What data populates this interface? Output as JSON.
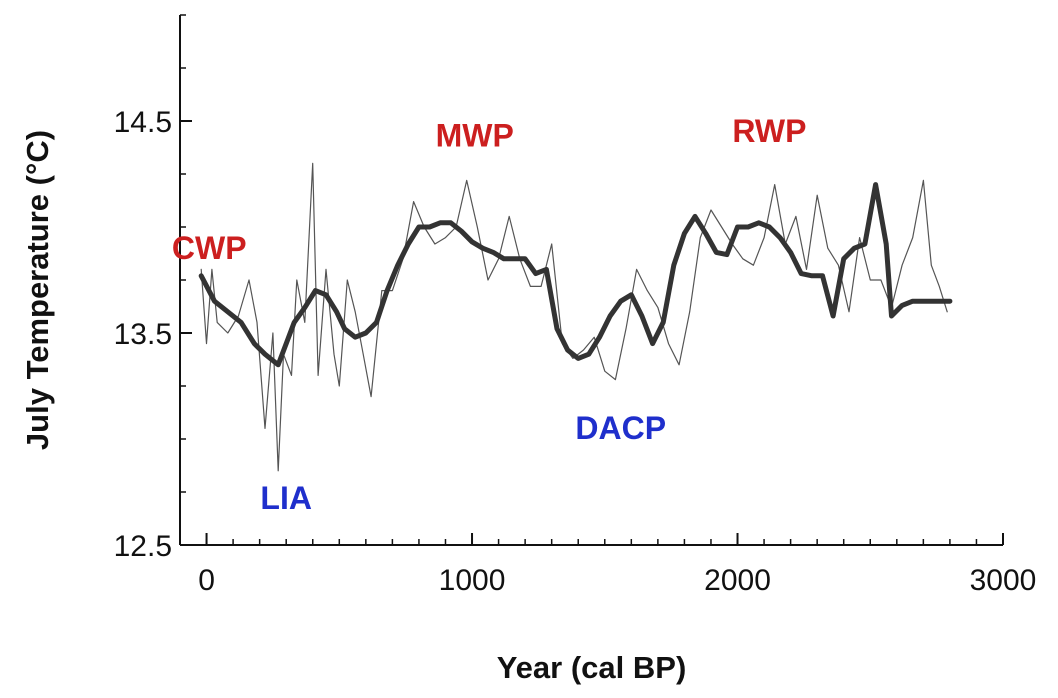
{
  "chart_data": {
    "type": "line",
    "title": "",
    "xlabel": "Year (cal BP)",
    "ylabel": "July Temperature (°C)",
    "xlim": [
      -100,
      3000
    ],
    "ylim": [
      12.5,
      15.0
    ],
    "xticks": [
      0,
      1000,
      2000,
      3000
    ],
    "xtick_labels": [
      "0",
      "1000",
      "2000",
      "3000"
    ],
    "yticks": [
      12.5,
      13.5,
      14.5
    ],
    "ytick_labels": [
      "12.5",
      "13.5",
      "14.5"
    ],
    "x_minor_step": 100,
    "y_minor_step": 0.25,
    "grid": false,
    "legend": "none",
    "series": [
      {
        "style": "thin",
        "color": "#555555",
        "x": [
          -20,
          0,
          20,
          40,
          80,
          120,
          160,
          190,
          220,
          250,
          270,
          290,
          320,
          340,
          370,
          400,
          420,
          450,
          480,
          500,
          530,
          560,
          590,
          620,
          660,
          700,
          740,
          780,
          820,
          860,
          900,
          940,
          980,
          1020,
          1060,
          1100,
          1140,
          1180,
          1220,
          1260,
          1300,
          1340,
          1380,
          1420,
          1460,
          1500,
          1540,
          1580,
          1620,
          1660,
          1700,
          1740,
          1780,
          1820,
          1860,
          1900,
          1940,
          1980,
          2020,
          2060,
          2100,
          2140,
          2180,
          2220,
          2260,
          2300,
          2340,
          2380,
          2420,
          2460,
          2500,
          2540,
          2580,
          2620,
          2660,
          2700,
          2730,
          2760,
          2790
        ],
        "y": [
          13.8,
          13.45,
          13.8,
          13.55,
          13.5,
          13.58,
          13.75,
          13.55,
          13.05,
          13.5,
          12.85,
          13.4,
          13.3,
          13.75,
          13.55,
          14.3,
          13.3,
          13.8,
          13.4,
          13.25,
          13.75,
          13.6,
          13.4,
          13.2,
          13.7,
          13.7,
          13.85,
          14.12,
          14.0,
          13.92,
          13.95,
          14.0,
          14.22,
          14.0,
          13.75,
          13.85,
          14.05,
          13.85,
          13.72,
          13.72,
          13.92,
          13.45,
          13.38,
          13.42,
          13.48,
          13.32,
          13.28,
          13.52,
          13.8,
          13.7,
          13.62,
          13.45,
          13.35,
          13.6,
          13.95,
          14.08,
          14.0,
          13.92,
          13.85,
          13.82,
          13.95,
          14.2,
          13.92,
          14.05,
          13.8,
          14.15,
          13.9,
          13.82,
          13.6,
          13.95,
          13.75,
          13.75,
          13.62,
          13.82,
          13.95,
          14.22,
          13.82,
          13.72,
          13.6
        ]
      },
      {
        "style": "thick",
        "color": "#333333",
        "x": [
          -20,
          30,
          80,
          130,
          180,
          220,
          270,
          300,
          330,
          370,
          410,
          450,
          490,
          520,
          560,
          600,
          640,
          680,
          720,
          760,
          800,
          840,
          880,
          920,
          960,
          1000,
          1040,
          1080,
          1120,
          1160,
          1200,
          1240,
          1280,
          1320,
          1360,
          1400,
          1440,
          1480,
          1520,
          1560,
          1600,
          1640,
          1680,
          1720,
          1760,
          1800,
          1840,
          1880,
          1920,
          1960,
          2000,
          2040,
          2080,
          2120,
          2160,
          2200,
          2240,
          2280,
          2320,
          2360,
          2400,
          2440,
          2480,
          2520,
          2560,
          2580,
          2620,
          2660,
          2700,
          2720,
          2740,
          2760,
          2780,
          2800
        ],
        "y": [
          13.77,
          13.65,
          13.6,
          13.55,
          13.45,
          13.4,
          13.35,
          13.45,
          13.55,
          13.62,
          13.7,
          13.68,
          13.6,
          13.52,
          13.48,
          13.5,
          13.55,
          13.7,
          13.82,
          13.92,
          14.0,
          14.0,
          14.02,
          14.02,
          13.98,
          13.93,
          13.9,
          13.88,
          13.85,
          13.85,
          13.85,
          13.78,
          13.8,
          13.52,
          13.42,
          13.38,
          13.4,
          13.48,
          13.58,
          13.65,
          13.68,
          13.58,
          13.45,
          13.55,
          13.82,
          13.97,
          14.05,
          13.97,
          13.88,
          13.87,
          14.0,
          14.0,
          14.02,
          14.0,
          13.95,
          13.88,
          13.78,
          13.77,
          13.77,
          13.58,
          13.85,
          13.9,
          13.92,
          14.2,
          13.92,
          13.58,
          13.63,
          13.65,
          13.65,
          13.65,
          13.65,
          13.65,
          13.65,
          13.65
        ]
      }
    ],
    "annotations": [
      {
        "text": "CWP",
        "x": 10,
        "y": 13.85,
        "color": "#cc1f1f"
      },
      {
        "text": "LIA",
        "x": 300,
        "y": 12.67,
        "color": "#1f2fcc"
      },
      {
        "text": "MWP",
        "x": 1010,
        "y": 14.38,
        "color": "#cc1f1f"
      },
      {
        "text": "DACP",
        "x": 1560,
        "y": 13.0,
        "color": "#1f2fcc"
      },
      {
        "text": "RWP",
        "x": 2120,
        "y": 14.4,
        "color": "#cc1f1f"
      }
    ]
  }
}
